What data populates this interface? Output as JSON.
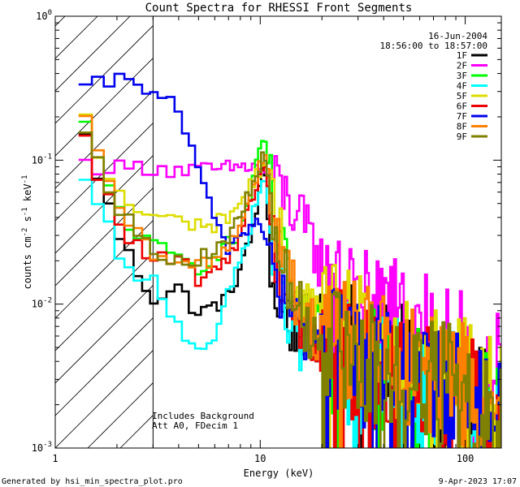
{
  "chart_data": {
    "type": "line",
    "title": "Count Spectra for RHESSI Front Segments",
    "xlabel": "Energy (keV)",
    "ylabel_main": "counts cm",
    "ylabel_exp1": "-2",
    "ylabel_s": " s",
    "ylabel_exp2": "-1",
    "ylabel_kev": " keV",
    "ylabel_exp3": "-1",
    "xscale": "log",
    "yscale": "log",
    "xlim": [
      1,
      150
    ],
    "ylim": [
      0.001,
      1
    ],
    "x_ticks": [
      {
        "value": 1,
        "label": "1"
      },
      {
        "value": 10,
        "label": "10"
      },
      {
        "value": 100,
        "label": "100"
      }
    ],
    "y_ticks": [
      {
        "value": 0.001,
        "base": "10",
        "exp": "-3"
      },
      {
        "value": 0.01,
        "base": "10",
        "exp": "-2"
      },
      {
        "value": 0.1,
        "base": "10",
        "exp": "-1"
      },
      {
        "value": 1,
        "base": "10",
        "exp": "0"
      }
    ],
    "date": "16-Jun-2004",
    "time_range": "18:56:00 to 18:57:00",
    "hatched_region": {
      "x_from": 1,
      "x_to": 3
    },
    "annotations": [
      "Includes Background",
      "Att A0, FDecim 1"
    ],
    "footer_left": "Generated by hsi_min_spectra_plot.pro",
    "footer_right": "9-Apr-2023 17:07",
    "series": [
      {
        "name": "1F",
        "color": "#000000",
        "profile": [
          [
            1.3,
            0.19
          ],
          [
            1.5,
            0.11
          ],
          [
            2,
            0.032
          ],
          [
            2.5,
            0.017
          ],
          [
            3,
            0.011
          ],
          [
            4,
            0.013
          ],
          [
            5,
            0.0085
          ],
          [
            7,
            0.011
          ],
          [
            9,
            0.028
          ],
          [
            10.5,
            0.095
          ],
          [
            11.5,
            0.012
          ],
          [
            14,
            0.007
          ],
          [
            20,
            0.007
          ],
          [
            30,
            0.0045
          ],
          [
            50,
            0.0035
          ],
          [
            80,
            0.0025
          ],
          [
            110,
            0.0022
          ],
          [
            150,
            0.0015
          ]
        ]
      },
      {
        "name": "2F",
        "color": "#ff00ff",
        "profile": [
          [
            1.3,
            0.095
          ],
          [
            2,
            0.088
          ],
          [
            3,
            0.09
          ],
          [
            4,
            0.085
          ],
          [
            6,
            0.085
          ],
          [
            8,
            0.09
          ],
          [
            10,
            0.09
          ],
          [
            12,
            0.07
          ],
          [
            14,
            0.05
          ],
          [
            17,
            0.03
          ],
          [
            20,
            0.02
          ],
          [
            25,
            0.013
          ],
          [
            30,
            0.01
          ],
          [
            40,
            0.008
          ],
          [
            60,
            0.006
          ],
          [
            80,
            0.005
          ],
          [
            110,
            0.004
          ],
          [
            150,
            0.003
          ]
        ]
      },
      {
        "name": "3F",
        "color": "#00ff00",
        "profile": [
          [
            1.3,
            0.25
          ],
          [
            1.5,
            0.12
          ],
          [
            2,
            0.05
          ],
          [
            2.5,
            0.03
          ],
          [
            3,
            0.025
          ],
          [
            5,
            0.018
          ],
          [
            8,
            0.03
          ],
          [
            10.5,
            0.15
          ],
          [
            12,
            0.03
          ],
          [
            16,
            0.007
          ],
          [
            22,
            0.005
          ],
          [
            30,
            0.004
          ],
          [
            50,
            0.003
          ],
          [
            80,
            0.003
          ],
          [
            110,
            0.0022
          ],
          [
            150,
            0.0014
          ]
        ]
      },
      {
        "name": "4F",
        "color": "#00ffff",
        "profile": [
          [
            1.3,
            0.075
          ],
          [
            1.5,
            0.06
          ],
          [
            2,
            0.025
          ],
          [
            2.5,
            0.013
          ],
          [
            3,
            0.015
          ],
          [
            4,
            0.007
          ],
          [
            5,
            0.005
          ],
          [
            6,
            0.006
          ],
          [
            8,
            0.02
          ],
          [
            10.5,
            0.08
          ],
          [
            12,
            0.015
          ],
          [
            16,
            0.005
          ],
          [
            22,
            0.004
          ],
          [
            30,
            0.0035
          ],
          [
            50,
            0.003
          ],
          [
            80,
            0.0025
          ],
          [
            110,
            0.002
          ],
          [
            150,
            0.0012
          ]
        ]
      },
      {
        "name": "5F",
        "color": "#dddd00",
        "profile": [
          [
            1.3,
            0.28
          ],
          [
            1.5,
            0.13
          ],
          [
            2,
            0.06
          ],
          [
            2.5,
            0.045
          ],
          [
            3,
            0.04
          ],
          [
            4,
            0.038
          ],
          [
            6,
            0.035
          ],
          [
            8,
            0.05
          ],
          [
            10.5,
            0.1
          ],
          [
            12,
            0.035
          ],
          [
            16,
            0.01
          ],
          [
            22,
            0.007
          ],
          [
            30,
            0.006
          ],
          [
            50,
            0.004
          ],
          [
            80,
            0.0035
          ],
          [
            110,
            0.003
          ],
          [
            150,
            0.002
          ]
        ]
      },
      {
        "name": "6F",
        "color": "#ee0000",
        "profile": [
          [
            1.3,
            0.18
          ],
          [
            1.5,
            0.1
          ],
          [
            2,
            0.04
          ],
          [
            2.5,
            0.025
          ],
          [
            3,
            0.02
          ],
          [
            4,
            0.02
          ],
          [
            5,
            0.015
          ],
          [
            6,
            0.016
          ],
          [
            8,
            0.03
          ],
          [
            10.5,
            0.1
          ],
          [
            12,
            0.02
          ],
          [
            16,
            0.006
          ],
          [
            22,
            0.005
          ],
          [
            30,
            0.004
          ],
          [
            50,
            0.003
          ],
          [
            80,
            0.0025
          ],
          [
            110,
            0.002
          ],
          [
            150,
            0.0014
          ]
        ]
      },
      {
        "name": "7F",
        "color": "#0000ee",
        "profile": [
          [
            1.3,
            0.28
          ],
          [
            1.6,
            0.33
          ],
          [
            2,
            0.36
          ],
          [
            2.5,
            0.34
          ],
          [
            3,
            0.31
          ],
          [
            3.5,
            0.27
          ],
          [
            4,
            0.2
          ],
          [
            4.5,
            0.14
          ],
          [
            5,
            0.09
          ],
          [
            5.5,
            0.055
          ],
          [
            6,
            0.035
          ],
          [
            7,
            0.025
          ],
          [
            8,
            0.03
          ],
          [
            10,
            0.04
          ],
          [
            11.5,
            0.018
          ],
          [
            13,
            0.01
          ],
          [
            16,
            0.007
          ],
          [
            22,
            0.005
          ],
          [
            30,
            0.004
          ],
          [
            50,
            0.003
          ],
          [
            80,
            0.0025
          ],
          [
            110,
            0.002
          ],
          [
            150,
            0.0014
          ]
        ]
      },
      {
        "name": "8F",
        "color": "#ff8000",
        "profile": [
          [
            1.3,
            0.23
          ],
          [
            1.5,
            0.14
          ],
          [
            2,
            0.05
          ],
          [
            2.5,
            0.03
          ],
          [
            3,
            0.022
          ],
          [
            4,
            0.018
          ],
          [
            6,
            0.02
          ],
          [
            8,
            0.035
          ],
          [
            10.5,
            0.12
          ],
          [
            12,
            0.03
          ],
          [
            16,
            0.008
          ],
          [
            22,
            0.006
          ],
          [
            30,
            0.005
          ],
          [
            50,
            0.004
          ],
          [
            80,
            0.003
          ],
          [
            110,
            0.0025
          ],
          [
            150,
            0.0017
          ]
        ]
      },
      {
        "name": "9F",
        "color": "#808000",
        "profile": [
          [
            1.3,
            0.25
          ],
          [
            1.5,
            0.13
          ],
          [
            2,
            0.05
          ],
          [
            2.5,
            0.03
          ],
          [
            3,
            0.025
          ],
          [
            4,
            0.02
          ],
          [
            6,
            0.022
          ],
          [
            8,
            0.04
          ],
          [
            10.5,
            0.11
          ],
          [
            12,
            0.025
          ],
          [
            16,
            0.008
          ],
          [
            22,
            0.005
          ],
          [
            30,
            0.004
          ],
          [
            50,
            0.0035
          ],
          [
            80,
            0.0028
          ],
          [
            110,
            0.002
          ],
          [
            150,
            0.0014
          ]
        ]
      }
    ]
  }
}
